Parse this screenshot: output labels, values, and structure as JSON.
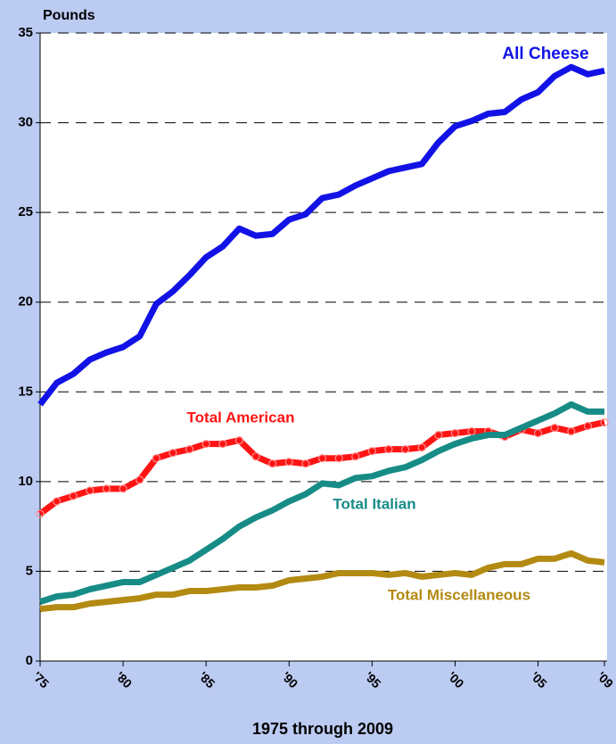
{
  "chart_data": {
    "type": "line",
    "y_label": "Pounds",
    "x_label": "1975 through 2009",
    "x": [
      1975,
      1976,
      1977,
      1978,
      1979,
      1980,
      1981,
      1982,
      1983,
      1984,
      1985,
      1986,
      1987,
      1988,
      1989,
      1990,
      1991,
      1992,
      1993,
      1994,
      1995,
      1996,
      1997,
      1998,
      1999,
      2000,
      2001,
      2002,
      2003,
      2004,
      2005,
      2006,
      2007,
      2008,
      2009
    ],
    "series": [
      {
        "name": "All Cheese",
        "color": "#1212e6",
        "values": [
          14.3,
          15.5,
          16.0,
          16.8,
          17.2,
          17.5,
          18.1,
          19.9,
          20.6,
          21.5,
          22.5,
          23.1,
          24.1,
          23.7,
          23.8,
          24.6,
          24.9,
          25.8,
          26.0,
          26.5,
          26.9,
          27.3,
          27.5,
          27.7,
          28.9,
          29.8,
          30.1,
          30.5,
          30.6,
          31.3,
          31.7,
          32.6,
          33.1,
          32.7,
          32.9
        ]
      },
      {
        "name": "Total American",
        "color": "#ff1414",
        "markers": true,
        "values": [
          8.2,
          8.9,
          9.2,
          9.5,
          9.6,
          9.6,
          10.1,
          11.3,
          11.6,
          11.8,
          12.1,
          12.1,
          12.3,
          11.4,
          11.0,
          11.1,
          11.0,
          11.3,
          11.3,
          11.4,
          11.7,
          11.8,
          11.8,
          11.9,
          12.6,
          12.7,
          12.8,
          12.8,
          12.5,
          12.9,
          12.7,
          13.0,
          12.8,
          13.1,
          13.3
        ]
      },
      {
        "name": "Total Italian",
        "color": "#178c86",
        "values": [
          3.3,
          3.6,
          3.7,
          4.0,
          4.2,
          4.4,
          4.4,
          4.8,
          5.2,
          5.6,
          6.2,
          6.8,
          7.5,
          8.0,
          8.4,
          8.9,
          9.3,
          9.9,
          9.8,
          10.2,
          10.3,
          10.6,
          10.8,
          11.2,
          11.7,
          12.1,
          12.4,
          12.6,
          12.6,
          13.0,
          13.4,
          13.8,
          14.3,
          13.9,
          13.9
        ]
      },
      {
        "name": "Total Miscellaneous",
        "color": "#b38a12",
        "values": [
          2.9,
          3.0,
          3.0,
          3.2,
          3.3,
          3.4,
          3.5,
          3.7,
          3.7,
          3.9,
          3.9,
          4.0,
          4.1,
          4.1,
          4.2,
          4.5,
          4.6,
          4.7,
          4.9,
          4.9,
          4.9,
          4.8,
          4.9,
          4.7,
          4.8,
          4.9,
          4.8,
          5.2,
          5.4,
          5.4,
          5.7,
          5.7,
          6.0,
          5.6,
          5.5
        ]
      }
    ],
    "xlim": [
      1975,
      2009
    ],
    "xticks": [
      {
        "value": 1975,
        "label": "'75"
      },
      {
        "value": 1980,
        "label": "'80"
      },
      {
        "value": 1985,
        "label": "'85"
      },
      {
        "value": 1990,
        "label": "'90"
      },
      {
        "value": 1995,
        "label": "'95"
      },
      {
        "value": 2000,
        "label": "'00"
      },
      {
        "value": 2005,
        "label": "'05"
      },
      {
        "value": 2009,
        "label": "'09"
      }
    ],
    "ylim": [
      0,
      35
    ],
    "yticks": [
      0,
      5,
      10,
      15,
      20,
      25,
      30,
      35
    ],
    "grid": true
  }
}
